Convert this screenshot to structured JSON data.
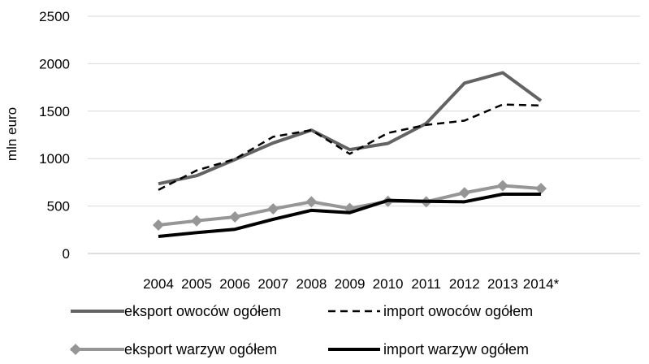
{
  "chart_data": {
    "type": "line",
    "title": "",
    "xlabel": "",
    "ylabel": "mln euro",
    "ylim": [
      0,
      2500
    ],
    "yticks": [
      0,
      500,
      1000,
      1500,
      2000,
      2500
    ],
    "grid": "horizontal",
    "legend_position": "bottom",
    "categories": [
      "2004",
      "2005",
      "2006",
      "2007",
      "2008",
      "2009",
      "2010",
      "2011",
      "2012",
      "2013",
      "2014*"
    ],
    "series": [
      {
        "name": "eksport owoców ogółem",
        "values": [
          735,
          820,
          990,
          1165,
          1300,
          1095,
          1160,
          1370,
          1795,
          1905,
          1610
        ],
        "color": "#636363",
        "style": "solid",
        "marker": "none"
      },
      {
        "name": "import owoców ogółem",
        "values": [
          670,
          875,
          995,
          1230,
          1300,
          1050,
          1270,
          1355,
          1400,
          1570,
          1560
        ],
        "color": "#000000",
        "style": "dashed",
        "marker": "none"
      },
      {
        "name": "eksport warzyw ogółem",
        "values": [
          300,
          345,
          385,
          470,
          545,
          475,
          550,
          545,
          640,
          715,
          685
        ],
        "color": "#969696",
        "style": "solid",
        "marker": "diamond"
      },
      {
        "name": "import warzyw ogółem",
        "values": [
          180,
          220,
          255,
          360,
          455,
          430,
          560,
          550,
          545,
          625,
          625
        ],
        "color": "#000000",
        "style": "solid",
        "marker": "none"
      }
    ]
  }
}
